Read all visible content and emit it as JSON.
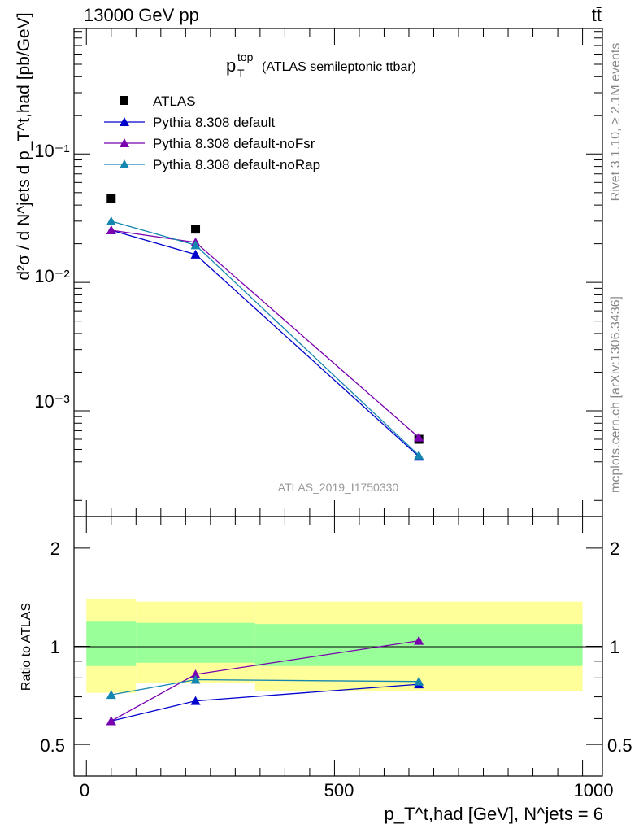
{
  "header": {
    "left": "13000 GeV pp",
    "right": "tt̄"
  },
  "side_labels": {
    "rivet": "Rivet 3.1.10, ≥ 2.1M events",
    "mcplots": "mcplots.cern.ch [arXiv:1306.3436]"
  },
  "main_plot": {
    "title_symbol": "p",
    "title_sup": "top",
    "title_sub": "T",
    "title_text": "(ATLAS semileptonic ttbar)",
    "ylabel": "d²σ / d N^jets d p_T^t,had [pb/GeV]",
    "watermark": "ATLAS_2019_I1750330",
    "yticks": [
      "10⁻¹",
      "10⁻²",
      "10⁻³"
    ]
  },
  "ratio_plot": {
    "ylabel": "Ratio to ATLAS",
    "yticks": [
      "0.5",
      "1",
      "2"
    ]
  },
  "xaxis": {
    "label": "p_T^t,had [GeV], N^jets = 6",
    "ticks": [
      "0",
      "500",
      "1000"
    ]
  },
  "legend": [
    {
      "name": "ATLAS",
      "marker": "square",
      "color": "#000000"
    },
    {
      "name": "Pythia 8.308 default",
      "marker": "triangle",
      "color": "#0000cc"
    },
    {
      "name": "Pythia 8.308 default-noFsr",
      "marker": "triangle",
      "color": "#7a00b0"
    },
    {
      "name": "Pythia 8.308 default-noRap",
      "marker": "triangle",
      "color": "#1486b0"
    }
  ],
  "chart_data": [
    {
      "type": "scatter",
      "title": "p_T^top (ATLAS semileptonic ttbar)",
      "xlabel": "p_T^t,had [GeV], N^jets = 6",
      "ylabel": "d²σ / d N^jets d p_T^t,had [pb/GeV]",
      "yscale": "log",
      "xlim": [
        -25,
        1040
      ],
      "ylim": [
        0.00015,
        0.95
      ],
      "bins": [
        [
          0,
          100
        ],
        [
          100,
          340
        ],
        [
          340,
          1000
        ]
      ],
      "x": [
        50,
        220,
        670
      ],
      "series": [
        {
          "name": "ATLAS",
          "values": [
            0.045,
            0.026,
            0.0006
          ]
        },
        {
          "name": "Pythia 8.308 default",
          "values": [
            0.0255,
            0.0165,
            0.00044
          ]
        },
        {
          "name": "Pythia 8.308 default-noFsr",
          "values": [
            0.0255,
            0.0205,
            0.00062
          ]
        },
        {
          "name": "Pythia 8.308 default-noRap",
          "values": [
            0.03,
            0.0195,
            0.00045
          ]
        }
      ]
    },
    {
      "type": "line",
      "ylabel": "Ratio to ATLAS",
      "yscale": "log",
      "xlim": [
        -25,
        1040
      ],
      "ylim": [
        0.4,
        2.5
      ],
      "x": [
        50,
        220,
        670
      ],
      "uncertainty_bands": {
        "bins": [
          [
            0,
            100
          ],
          [
            100,
            340
          ],
          [
            340,
            1000
          ]
        ],
        "stat_syst": [
          [
            0.72,
            1.4
          ],
          [
            0.77,
            1.37
          ],
          [
            0.73,
            1.37
          ]
        ],
        "stat": [
          [
            0.87,
            1.19
          ],
          [
            0.89,
            1.18
          ],
          [
            0.87,
            1.17
          ]
        ]
      },
      "series": [
        {
          "name": "Pythia 8.308 default",
          "values": [
            0.59,
            0.68,
            0.765
          ]
        },
        {
          "name": "Pythia 8.308 default-noFsr",
          "values": [
            0.59,
            0.82,
            1.04
          ]
        },
        {
          "name": "Pythia 8.308 default-noRap",
          "values": [
            0.71,
            0.79,
            0.78
          ]
        }
      ]
    }
  ]
}
